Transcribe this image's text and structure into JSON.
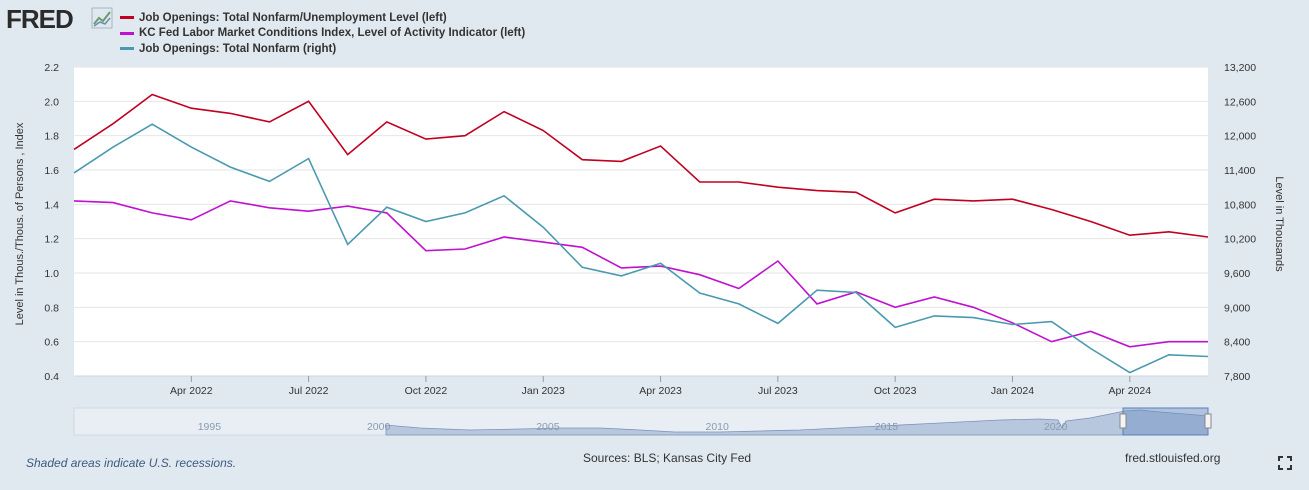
{
  "logo": {
    "text": "FRED"
  },
  "footer": {
    "note": "Shaded areas indicate U.S. recessions.",
    "sources": "Sources: BLS; Kansas City Fed",
    "site": "fred.stlouisfed.org"
  },
  "chart_data": {
    "type": "line",
    "x": [
      "2022-01",
      "2022-02",
      "2022-03",
      "2022-04",
      "2022-05",
      "2022-06",
      "2022-07",
      "2022-08",
      "2022-09",
      "2022-10",
      "2022-11",
      "2022-12",
      "2023-01",
      "2023-02",
      "2023-03",
      "2023-04",
      "2023-05",
      "2023-06",
      "2023-07",
      "2023-08",
      "2023-09",
      "2023-10",
      "2023-11",
      "2023-12",
      "2024-01",
      "2024-02",
      "2024-03",
      "2024-04",
      "2024-05",
      "2024-06"
    ],
    "x_ticks": [
      {
        "date": "2022-04",
        "label": "Apr 2022"
      },
      {
        "date": "2022-07",
        "label": "Jul 2022"
      },
      {
        "date": "2022-10",
        "label": "Oct 2022"
      },
      {
        "date": "2023-01",
        "label": "Jan 2023"
      },
      {
        "date": "2023-04",
        "label": "Apr 2023"
      },
      {
        "date": "2023-07",
        "label": "Jul 2023"
      },
      {
        "date": "2023-10",
        "label": "Oct 2023"
      },
      {
        "date": "2024-01",
        "label": "Jan 2024"
      },
      {
        "date": "2024-04",
        "label": "Apr 2024"
      }
    ],
    "y_left": {
      "label": "Level in Thous./Thous. of Persons , Index",
      "range": [
        0.4,
        2.2
      ],
      "ticks": [
        "0.4",
        "0.6",
        "0.8",
        "1.0",
        "1.2",
        "1.4",
        "1.6",
        "1.8",
        "2.0",
        "2.2"
      ]
    },
    "y_right": {
      "label": "Level in Thousands",
      "range": [
        7800,
        13200
      ],
      "ticks": [
        "7,800",
        "8,400",
        "9,000",
        "9,600",
        "10,200",
        "10,800",
        "11,400",
        "12,000",
        "12,600",
        "13,200"
      ]
    },
    "grid": true,
    "legend_position": "top-left",
    "series": [
      {
        "name": "Job Openings: Total Nonfarm/Unemployment Level (left)",
        "axis": "left",
        "color": "#c00020",
        "values": [
          1.72,
          1.87,
          2.04,
          1.96,
          1.93,
          1.88,
          2.0,
          1.69,
          1.88,
          1.78,
          1.8,
          1.94,
          1.83,
          1.66,
          1.65,
          1.74,
          1.53,
          1.53,
          1.5,
          1.48,
          1.47,
          1.35,
          1.43,
          1.42,
          1.43,
          1.37,
          1.3,
          1.22,
          1.24,
          1.21
        ]
      },
      {
        "name": "KC Fed Labor Market Conditions Index, Level of Activity Indicator (left)",
        "axis": "left",
        "color": "#c010d0",
        "values": [
          1.42,
          1.41,
          1.35,
          1.31,
          1.42,
          1.38,
          1.36,
          1.39,
          1.35,
          1.13,
          1.14,
          1.21,
          1.18,
          1.15,
          1.03,
          1.04,
          0.99,
          0.91,
          1.07,
          0.82,
          0.89,
          0.8,
          0.86,
          0.8,
          0.71,
          0.6,
          0.66,
          0.57,
          0.6,
          0.6
        ]
      },
      {
        "name": "Job Openings: Total Nonfarm (right)",
        "axis": "right",
        "color": "#4a99b0",
        "values": [
          11350,
          11800,
          12200,
          11800,
          11450,
          11200,
          11600,
          10100,
          10750,
          10500,
          10650,
          10950,
          10400,
          9700,
          9550,
          9770,
          9250,
          9060,
          8720,
          9300,
          9260,
          8650,
          8850,
          8820,
          8700,
          8750,
          8280,
          7860,
          8170,
          8140
        ]
      }
    ],
    "navigator": {
      "ticks": [
        "1995",
        "2000",
        "2005",
        "2010",
        "2015",
        "2020"
      ]
    }
  }
}
